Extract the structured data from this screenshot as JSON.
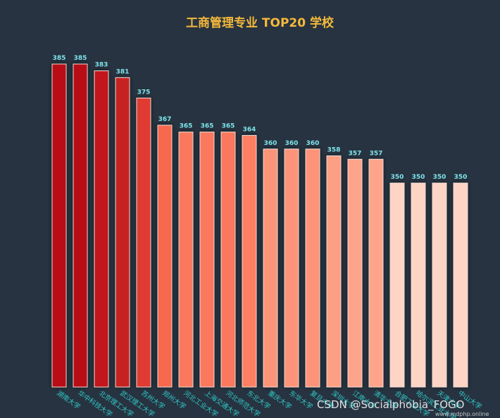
{
  "colors": {
    "background": "#273340",
    "title": "#f5b93c",
    "value_label": "#7fe3ea",
    "tick_label": "#2fc6c6",
    "bar_border": "#f3ddd4",
    "watermark": "#ffffff",
    "gradient": [
      "#b80f14",
      "#d32f2a",
      "#ee4b37",
      "#fc7f63",
      "#fda48a",
      "#fed4c4"
    ]
  },
  "chart_data": {
    "type": "bar",
    "title": "工商管理专业 TOP20 学校",
    "xlabel": "",
    "ylabel": "",
    "ylim": [
      290,
      390
    ],
    "grid": false,
    "legend": "none",
    "categories": [
      "湖南大学",
      "华中科技大学",
      "北京理工大学",
      "武汉理工大学",
      "苏州大学",
      "郑州大学",
      "河北工业大学",
      "上海交通大学",
      "河北师范大学",
      "东北大学",
      "重庆大学",
      "东华大学",
      "复旦大学",
      "深圳大学",
      "江南大学",
      "清华大学",
      "合肥工业大学",
      "哈尔滨工业大学",
      "天津大学",
      "中山大学"
    ],
    "values": [
      385,
      385,
      383,
      381,
      375,
      367,
      365,
      365,
      365,
      364,
      360,
      360,
      360,
      358,
      357,
      357,
      350,
      350,
      350,
      350
    ],
    "value_labels": [
      "385",
      "385",
      "383",
      "381",
      "375",
      "367",
      "365",
      "365",
      "365",
      "364",
      "360",
      "360",
      "360",
      "358",
      "357",
      "357",
      "350",
      "350",
      "350",
      "350"
    ]
  },
  "watermark": {
    "text": "CSDN @Socialphobia_FOGO",
    "small_text": "www.mdphp.online"
  }
}
